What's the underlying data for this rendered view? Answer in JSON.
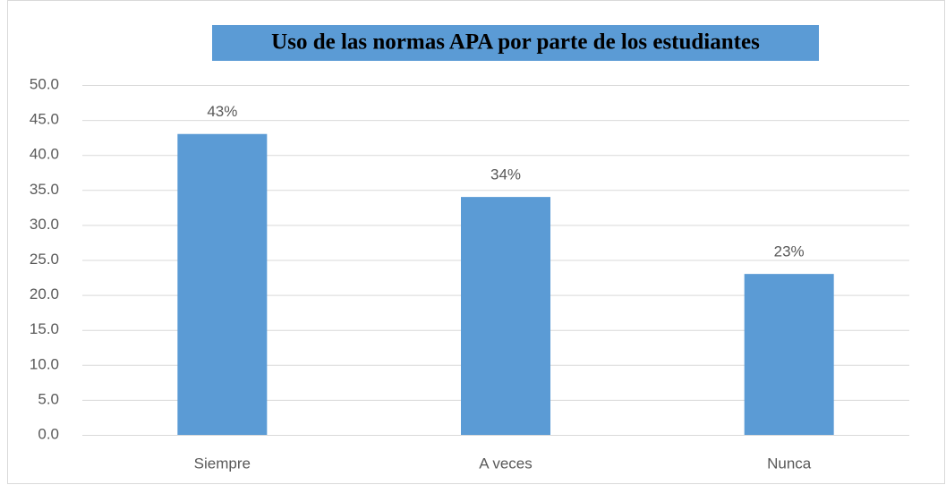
{
  "chart_data": {
    "type": "bar",
    "title": "Uso de las normas APA por parte de los estudiantes",
    "categories": [
      "Siempre",
      "A veces",
      "Nunca"
    ],
    "values": [
      43,
      34,
      23
    ],
    "value_labels": [
      "43%",
      "34%",
      "23%"
    ],
    "color": "#5b9bd5",
    "ylim": [
      0,
      50
    ],
    "yticks": [
      {
        "value": 0,
        "label": "0.0"
      },
      {
        "value": 5,
        "label": "5.0"
      },
      {
        "value": 10,
        "label": "10.0"
      },
      {
        "value": 15,
        "label": "15.0"
      },
      {
        "value": 20,
        "label": "20.0"
      },
      {
        "value": 25,
        "label": "25.0"
      },
      {
        "value": 30,
        "label": "30.0"
      },
      {
        "value": 35,
        "label": "35.0"
      },
      {
        "value": 40,
        "label": "40.0"
      },
      {
        "value": 45,
        "label": "45.0"
      },
      {
        "value": 50,
        "label": "50.0"
      }
    ],
    "grid": true
  }
}
